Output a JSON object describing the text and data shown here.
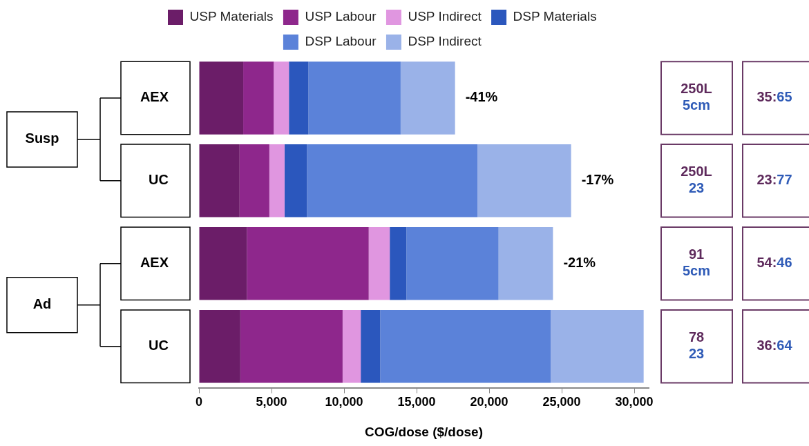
{
  "chart_data": {
    "type": "bar",
    "orientation": "horizontal",
    "stacked": true,
    "categories": [
      "AEX",
      "UC",
      "AEX",
      "UC"
    ],
    "series": [
      {
        "name": "USP Materials",
        "color": "#6b1d68",
        "values": [
          3050,
          2800,
          3300,
          2850
        ]
      },
      {
        "name": "USP Labour",
        "color": "#8e278c",
        "values": [
          2100,
          2050,
          8400,
          7050
        ]
      },
      {
        "name": "USP Indirect",
        "color": "#e096e0",
        "values": [
          1050,
          1050,
          1450,
          1250
        ]
      },
      {
        "name": "DSP Materials",
        "color": "#2b57bd",
        "values": [
          1350,
          1550,
          1150,
          1350
        ]
      },
      {
        "name": "DSP Labour",
        "color": "#5b82d9",
        "values": [
          6350,
          11750,
          6350,
          11750
        ]
      },
      {
        "name": "DSP Indirect",
        "color": "#9ab2e8",
        "values": [
          3750,
          6450,
          3750,
          6400
        ]
      }
    ],
    "xlim": [
      0,
      31000
    ],
    "xticks": [
      0,
      {
        "value": 5000,
        "label": "5,000"
      },
      {
        "value": 10000,
        "label": "10,000"
      },
      {
        "value": 15000,
        "label": "15,000"
      },
      {
        "value": 20000,
        "label": "20,000"
      },
      {
        "value": 25000,
        "label": "25,000"
      },
      {
        "value": 30000,
        "label": "30,000"
      }
    ],
    "xlabel": "COG/dose ($/dose)",
    "legend": "top",
    "grid": false,
    "annotations": [
      "Susp",
      "Ad",
      "-41%",
      "-17%",
      "-21%",
      "250L\n5cm",
      "35:65",
      "250L\n23",
      "23:77",
      "91\n5cm",
      "54:46",
      "78\n23",
      "36:64"
    ]
  }
}
